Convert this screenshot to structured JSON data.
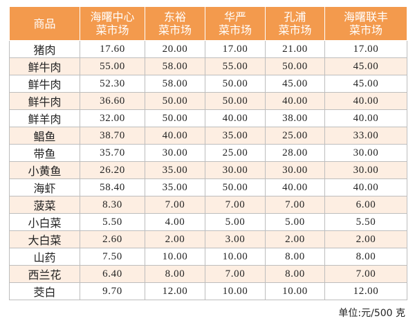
{
  "table": {
    "headers": [
      {
        "lines": [
          "商品"
        ]
      },
      {
        "lines": [
          "海曙中心",
          "菜市场"
        ]
      },
      {
        "lines": [
          "东裕",
          "菜市场"
        ]
      },
      {
        "lines": [
          "华严",
          "菜市场"
        ]
      },
      {
        "lines": [
          "孔浦",
          "菜市场"
        ]
      },
      {
        "lines": [
          "海曙联丰",
          "菜市场"
        ]
      }
    ],
    "rows": [
      {
        "name": "猪肉",
        "values": [
          "17.60",
          "20.00",
          "17.00",
          "21.00",
          "17.00"
        ]
      },
      {
        "name": "鲜牛肉",
        "values": [
          "55.00",
          "58.00",
          "55.00",
          "50.00",
          "45.00"
        ]
      },
      {
        "name": "鲜牛肉",
        "values": [
          "52.30",
          "58.00",
          "50.00",
          "45.00",
          "45.00"
        ]
      },
      {
        "name": "鲜牛肉",
        "values": [
          "36.60",
          "50.00",
          "50.00",
          "40.00",
          "40.00"
        ]
      },
      {
        "name": "鲜羊肉",
        "values": [
          "32.00",
          "50.00",
          "40.00",
          "38.00",
          "40.00"
        ]
      },
      {
        "name": "鲳鱼",
        "values": [
          "38.70",
          "40.00",
          "35.00",
          "25.00",
          "33.00"
        ]
      },
      {
        "name": "带鱼",
        "values": [
          "35.70",
          "30.00",
          "25.00",
          "28.00",
          "30.00"
        ]
      },
      {
        "name": "小黄鱼",
        "values": [
          "26.20",
          "35.00",
          "30.00",
          "30.00",
          "30.00"
        ]
      },
      {
        "name": "海虾",
        "values": [
          "58.40",
          "35.00",
          "50.00",
          "40.00",
          "40.00"
        ]
      },
      {
        "name": "菠菜",
        "values": [
          "8.30",
          "7.00",
          "7.00",
          "7.00",
          "6.00"
        ]
      },
      {
        "name": "小白菜",
        "values": [
          "5.50",
          "4.00",
          "5.00",
          "5.00",
          "5.50"
        ]
      },
      {
        "name": "大白菜",
        "values": [
          "2.60",
          "2.00",
          "3.00",
          "2.00",
          "2.00"
        ]
      },
      {
        "name": "山药",
        "values": [
          "7.50",
          "10.00",
          "10.00",
          "8.00",
          "8.00"
        ]
      },
      {
        "name": "西兰花",
        "values": [
          "6.40",
          "8.00",
          "7.00",
          "8.00",
          "7.00"
        ]
      },
      {
        "name": "茭白",
        "values": [
          "9.70",
          "12.00",
          "10.00",
          "10.00",
          "12.00"
        ]
      }
    ]
  },
  "unit_note": "单位:元/500 克",
  "colors": {
    "header_bg": "#f39a4d",
    "header_text": "#ffffff",
    "stripe_bg": "#fdeee2",
    "border": "#bdbdbd"
  }
}
